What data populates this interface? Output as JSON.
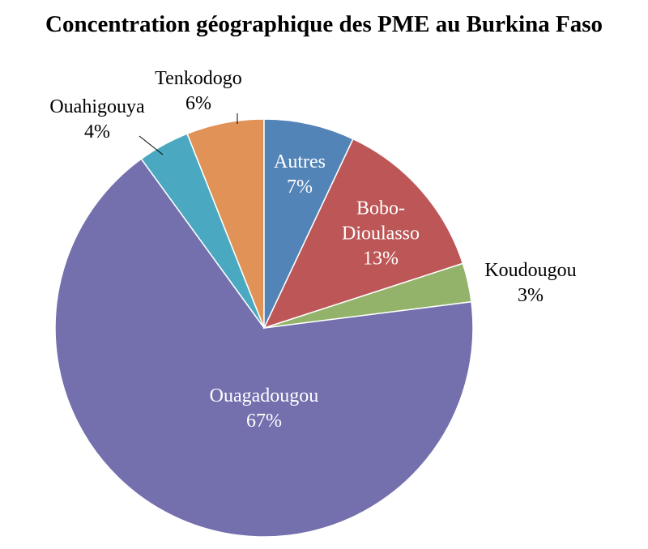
{
  "chart_data": {
    "type": "pie",
    "title": "Concentration géographique des PME au Burkina Faso",
    "categories": [
      "Autres",
      "Bobo-Dioulasso",
      "Koudougou",
      "Ouagadougou",
      "Ouahigouya",
      "Tenkodogo"
    ],
    "values": [
      7,
      13,
      3,
      67,
      4,
      6
    ],
    "value_labels": [
      "7%",
      "13%",
      "3%",
      "67%",
      "4%",
      "6%"
    ],
    "colors": [
      "#5384b8",
      "#bd5656",
      "#93b36a",
      "#7470ae",
      "#4aa9c0",
      "#e09257"
    ]
  }
}
